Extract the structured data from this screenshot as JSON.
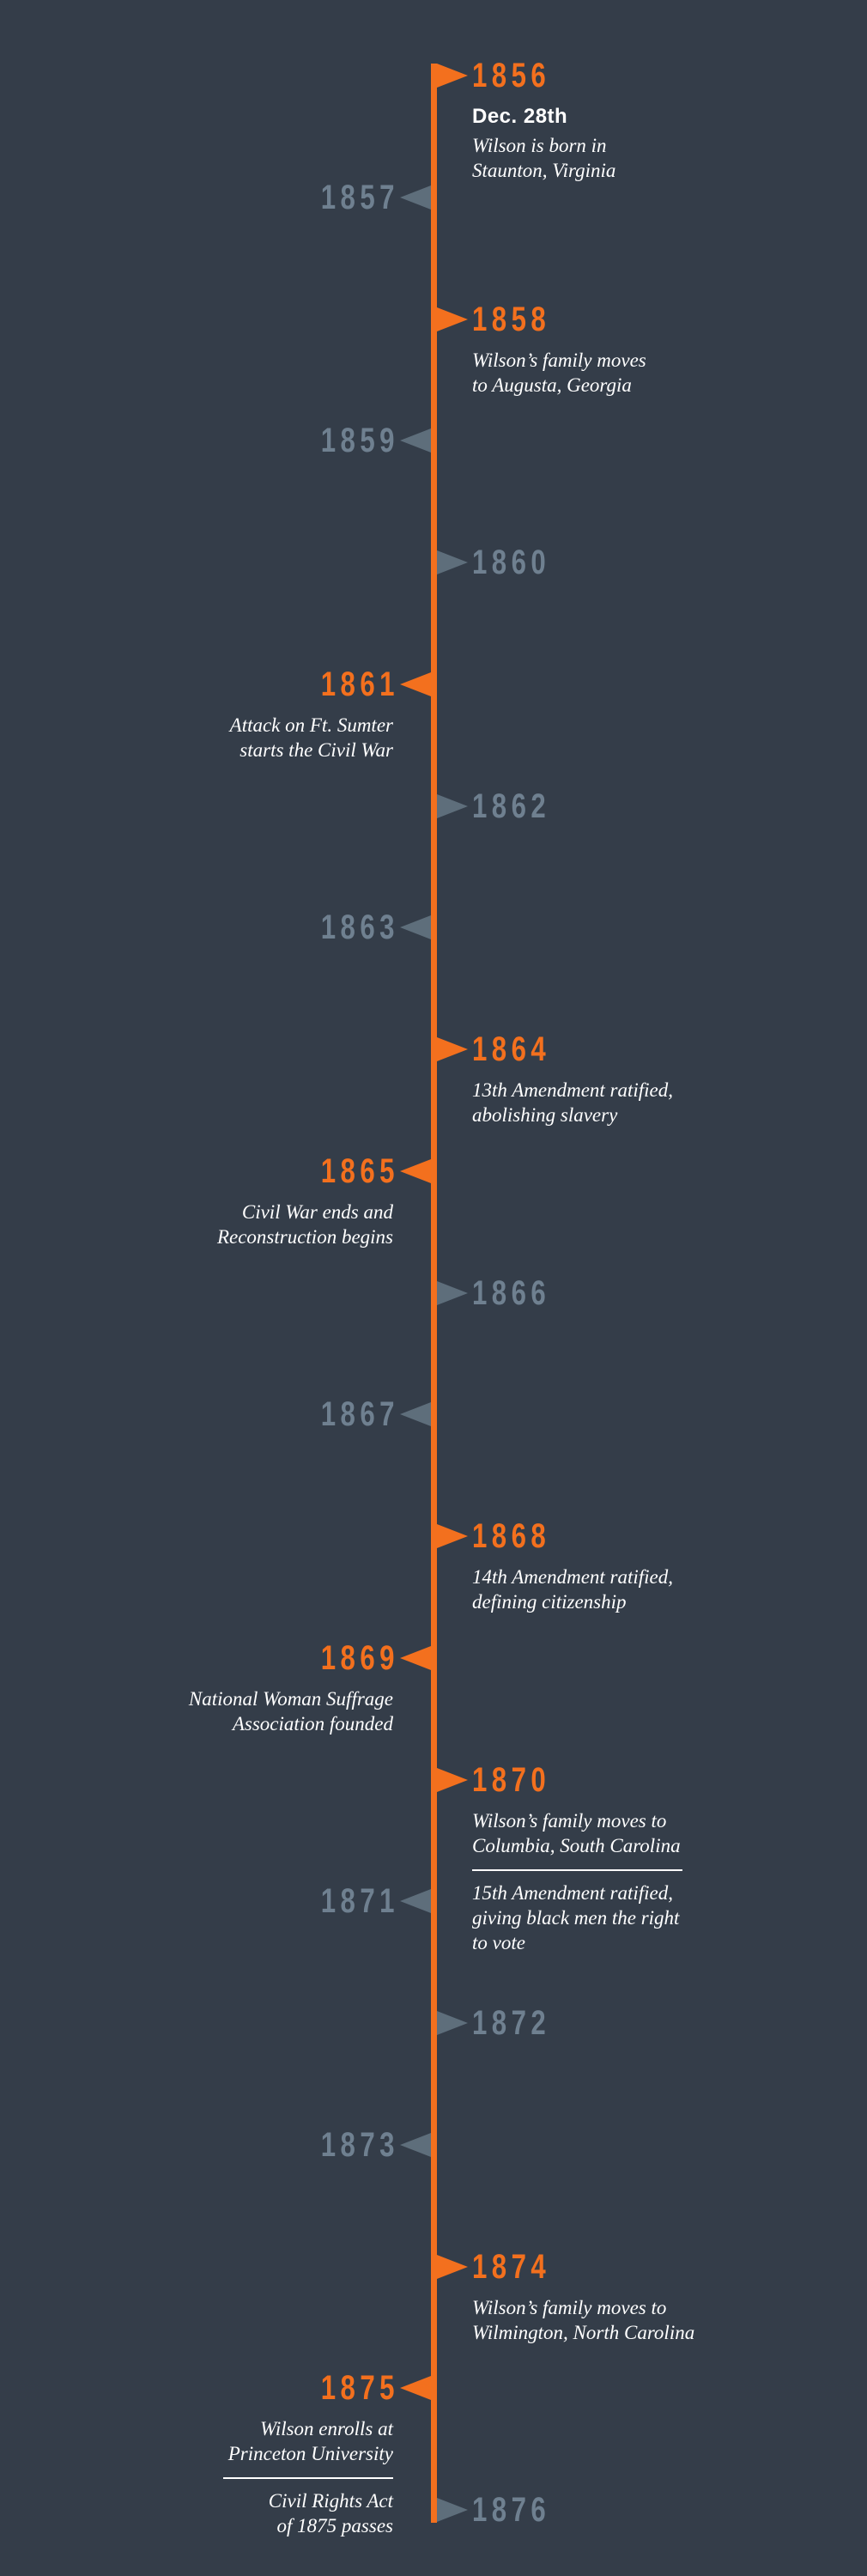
{
  "palette": {
    "background": "#343D49",
    "accent_orange": "#F3701E",
    "muted_year_gray": "#6F8090",
    "muted_arrow_gray": "#5E6E7B",
    "event_text_white": "#FFFFFF"
  },
  "timeline": {
    "start_year": 1856,
    "end_year": 1876,
    "entries": [
      {
        "year": 1856,
        "side": "right",
        "highlighted": true,
        "date_label": "Dec. 28th",
        "lines": [
          "Wilson is born in",
          "Staunton, Virginia"
        ]
      },
      {
        "year": 1857,
        "side": "left",
        "highlighted": false
      },
      {
        "year": 1858,
        "side": "right",
        "highlighted": true,
        "lines": [
          "Wilson’s family moves",
          "to Augusta, Georgia"
        ]
      },
      {
        "year": 1859,
        "side": "left",
        "highlighted": false
      },
      {
        "year": 1860,
        "side": "right",
        "highlighted": false
      },
      {
        "year": 1861,
        "side": "left",
        "highlighted": true,
        "lines": [
          "Attack on Ft. Sumter",
          "starts the Civil War"
        ]
      },
      {
        "year": 1862,
        "side": "right",
        "highlighted": false
      },
      {
        "year": 1863,
        "side": "left",
        "highlighted": false
      },
      {
        "year": 1864,
        "side": "right",
        "highlighted": true,
        "lines": [
          "13th Amendment ratified,",
          "abolishing slavery"
        ]
      },
      {
        "year": 1865,
        "side": "left",
        "highlighted": true,
        "lines": [
          "Civil War ends and",
          "Reconstruction begins"
        ]
      },
      {
        "year": 1866,
        "side": "right",
        "highlighted": false
      },
      {
        "year": 1867,
        "side": "left",
        "highlighted": false
      },
      {
        "year": 1868,
        "side": "right",
        "highlighted": true,
        "lines": [
          "14th Amendment ratified,",
          "defining citizenship"
        ]
      },
      {
        "year": 1869,
        "side": "left",
        "highlighted": true,
        "lines": [
          "National Woman Suffrage",
          "Association founded"
        ]
      },
      {
        "year": 1870,
        "side": "right",
        "highlighted": true,
        "lines": [
          "Wilson’s family moves to",
          "Columbia, South Carolina"
        ],
        "divider": true,
        "lines2": [
          "15th Amendment ratified,",
          "giving black men the right",
          "to vote"
        ]
      },
      {
        "year": 1871,
        "side": "left",
        "highlighted": false
      },
      {
        "year": 1872,
        "side": "right",
        "highlighted": false
      },
      {
        "year": 1873,
        "side": "left",
        "highlighted": false
      },
      {
        "year": 1874,
        "side": "right",
        "highlighted": true,
        "lines": [
          "Wilson’s family moves to",
          "Wilmington, North Carolina"
        ]
      },
      {
        "year": 1875,
        "side": "left",
        "highlighted": true,
        "lines": [
          "Wilson enrolls at",
          "Princeton University"
        ],
        "divider": true,
        "lines2": [
          "Civil Rights Act",
          "of 1875 passes"
        ]
      },
      {
        "year": 1876,
        "side": "right",
        "highlighted": false
      }
    ]
  }
}
